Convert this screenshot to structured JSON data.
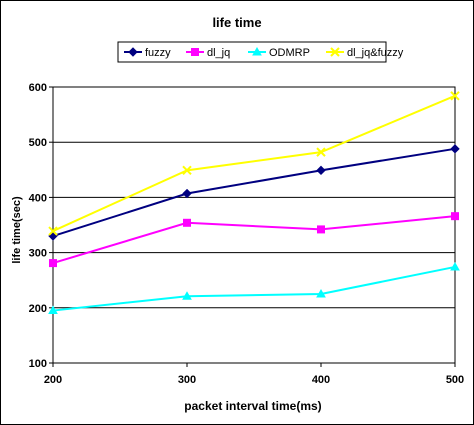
{
  "chart_data": {
    "type": "line",
    "title": "life time",
    "xlabel": "packet interval time(ms)",
    "ylabel": "life time(sec)",
    "x": [
      200,
      300,
      400,
      500
    ],
    "ylim": [
      100,
      600
    ],
    "yticks": [
      100,
      200,
      300,
      400,
      500,
      600
    ],
    "grid": true,
    "legend_position": "top",
    "series": [
      {
        "name": "fuzzy",
        "color": "#000080",
        "marker": "diamond",
        "values": [
          330,
          407,
          449,
          488
        ]
      },
      {
        "name": "dl_jq",
        "color": "#ff00ff",
        "marker": "square",
        "values": [
          281,
          354,
          342,
          366
        ]
      },
      {
        "name": "ODMRP",
        "color": "#00ffff",
        "marker": "triangle",
        "values": [
          195,
          221,
          225,
          274
        ]
      },
      {
        "name": "dl_jq&fuzzy",
        "color": "#ffff00",
        "marker": "x",
        "values": [
          339,
          449,
          482,
          584
        ]
      }
    ]
  }
}
